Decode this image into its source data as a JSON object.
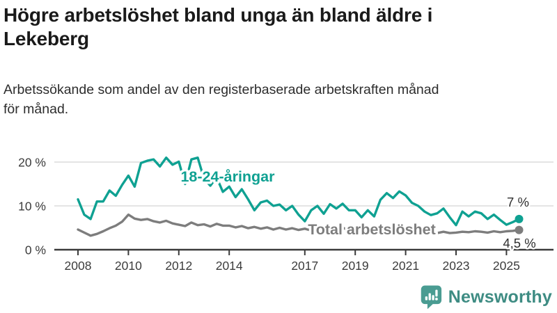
{
  "header": {
    "title_line1": "Högre arbetslöshet bland unga än bland äldre i",
    "title_line2": "Lekeberg",
    "subtitle_line1": "Arbetssökande som andel av den registerbaserade arbetskraften månad",
    "subtitle_line2": "för månad."
  },
  "chart_data": {
    "type": "line",
    "unit": "%",
    "x_start": 2008,
    "x_step": 0.25,
    "xticks": [
      2008,
      2010,
      2012,
      2014,
      2017,
      2019,
      2021,
      2023,
      2025
    ],
    "yticks": [
      {
        "value": 0,
        "label": "0 %"
      },
      {
        "value": 10,
        "label": "10 %"
      },
      {
        "value": 20,
        "label": "20 %"
      }
    ],
    "ylim": [
      0,
      22
    ],
    "grid": "horizontal",
    "legend_position": "inline-labels",
    "series": [
      {
        "name": "18-24-åringar",
        "color": "#0fa192",
        "end_label": "7 %",
        "values": [
          11.5,
          8.0,
          7.0,
          11.0,
          11.0,
          13.5,
          12.3,
          14.8,
          16.9,
          14.4,
          19.8,
          20.3,
          20.6,
          19.0,
          21.0,
          19.4,
          20.1,
          15.0,
          20.6,
          21.0,
          16.2,
          14.6,
          16.5,
          13.2,
          14.4,
          12.0,
          13.8,
          11.5,
          9.0,
          10.8,
          11.2,
          10.0,
          10.3,
          9.0,
          10.0,
          8.0,
          6.5,
          9.0,
          10.0,
          8.2,
          10.4,
          9.4,
          10.5,
          9.0,
          9.0,
          7.4,
          9.0,
          7.6,
          11.4,
          12.9,
          11.8,
          13.3,
          12.4,
          10.7,
          10.0,
          8.7,
          7.9,
          8.3,
          9.4,
          7.4,
          5.6,
          8.7,
          7.6,
          8.7,
          8.3,
          7.0,
          8.0,
          6.8,
          5.7,
          6.3,
          7.0
        ]
      },
      {
        "name": "Total arbetslöshet",
        "color": "#7d7d7d",
        "end_label": "4,5 %",
        "values": [
          4.6,
          3.9,
          3.2,
          3.6,
          4.2,
          4.9,
          5.5,
          6.4,
          8.0,
          7.1,
          6.8,
          7.0,
          6.5,
          6.2,
          6.6,
          6.0,
          5.7,
          5.4,
          6.2,
          5.6,
          5.8,
          5.3,
          5.9,
          5.5,
          5.5,
          5.1,
          5.4,
          4.9,
          5.2,
          4.8,
          5.1,
          4.6,
          5.0,
          4.6,
          4.9,
          4.5,
          4.8,
          4.4,
          4.9,
          4.5,
          5.1,
          4.7,
          5.0,
          4.5,
          4.6,
          4.2,
          4.6,
          4.4,
          4.8,
          5.3,
          5.5,
          5.2,
          5.0,
          4.7,
          4.4,
          4.2,
          4.0,
          3.8,
          4.1,
          3.8,
          3.9,
          4.1,
          4.0,
          4.2,
          4.1,
          3.9,
          4.2,
          4.0,
          4.2,
          4.3,
          4.5
        ]
      }
    ]
  },
  "footer": {
    "brand": "Newsworthy"
  },
  "colors": {
    "youth_line": "#0fa192",
    "total_line": "#7d7d7d",
    "axis": "#3a3a3a",
    "gridline": "#dcdcdc",
    "brand_teal": "#4a9c92",
    "brand_text": "#3e8c83"
  }
}
